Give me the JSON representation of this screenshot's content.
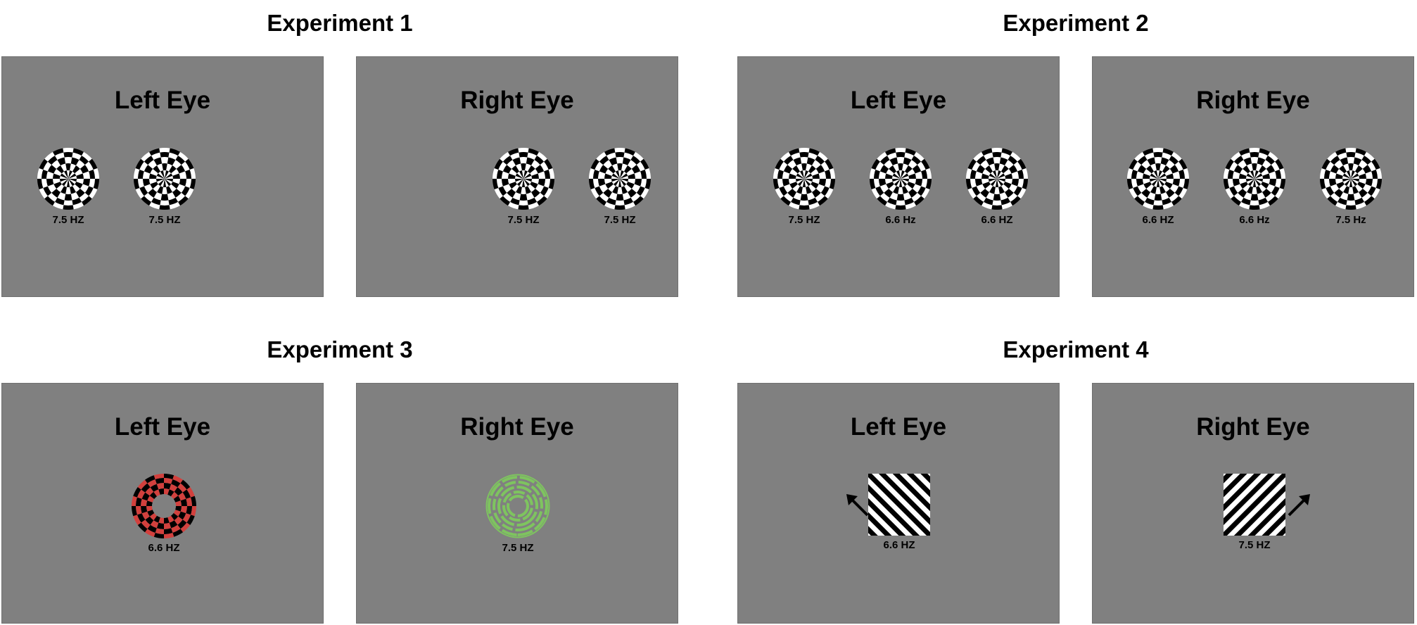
{
  "colors": {
    "background": "#ffffff",
    "panel": "#808080",
    "checker_dark": "#000000",
    "checker_light": "#ffffff",
    "red": "#d2403d",
    "green": "#7ec45f"
  },
  "experiments": [
    {
      "title": "Experiment 1",
      "left": {
        "label": "Left Eye",
        "stimuli": [
          {
            "type": "checkerboard",
            "freq": "7.5 HZ"
          },
          {
            "type": "checkerboard",
            "freq": "7.5 HZ"
          }
        ]
      },
      "right": {
        "label": "Right Eye",
        "stimuli": [
          {
            "type": "checkerboard",
            "freq": "7.5 HZ"
          },
          {
            "type": "checkerboard",
            "freq": "7.5 HZ"
          }
        ]
      }
    },
    {
      "title": "Experiment 2",
      "left": {
        "label": "Left Eye",
        "stimuli": [
          {
            "type": "checkerboard",
            "freq": "7.5 HZ"
          },
          {
            "type": "checkerboard",
            "freq": "6.6 Hz"
          },
          {
            "type": "checkerboard",
            "freq": "6.6 HZ"
          }
        ]
      },
      "right": {
        "label": "Right Eye",
        "stimuli": [
          {
            "type": "checkerboard",
            "freq": "6.6 HZ"
          },
          {
            "type": "checkerboard",
            "freq": "6.6 Hz"
          },
          {
            "type": "checkerboard",
            "freq": "7.5 Hz"
          }
        ]
      }
    },
    {
      "title": "Experiment 3",
      "left": {
        "label": "Left Eye",
        "stimuli": [
          {
            "type": "red-annulus",
            "freq": "6.6 HZ"
          }
        ]
      },
      "right": {
        "label": "Right Eye",
        "stimuli": [
          {
            "type": "green-annulus",
            "freq": "7.5 HZ"
          }
        ]
      }
    },
    {
      "title": "Experiment 4",
      "left": {
        "label": "Left Eye",
        "stimuli": [
          {
            "type": "grating-left",
            "freq": "6.6 HZ",
            "arrow": "up-left"
          }
        ]
      },
      "right": {
        "label": "Right Eye",
        "stimuli": [
          {
            "type": "grating-right",
            "freq": "7.5 HZ",
            "arrow": "up-right"
          }
        ]
      }
    }
  ]
}
